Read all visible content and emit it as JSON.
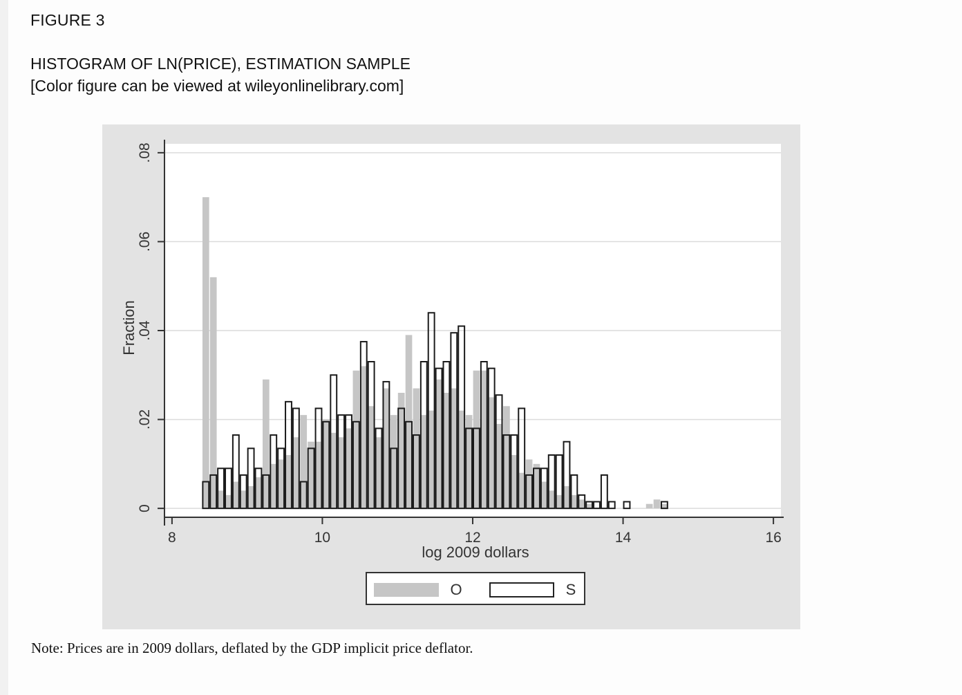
{
  "page": {
    "figure_label": "FIGURE 3",
    "title": "HISTOGRAM OF LN(PRICE), ESTIMATION SAMPLE",
    "subtitle": "[Color figure can be viewed at wileyonlinelibrary.com]",
    "note": "Note: Prices are in 2009 dollars, deflated by the GDP implicit price deflator."
  },
  "colors": {
    "panel_bg": "#e3e3e3",
    "plot_bg": "#ffffff",
    "series_o_fill": "#c6c6c6",
    "series_s_stroke": "#1a1a1a",
    "grid": "#dcdcdc"
  },
  "chart_data": {
    "type": "bar",
    "xlabel": "log 2009 dollars",
    "ylabel": "Fraction",
    "xlim": [
      7.9,
      16.1
    ],
    "ylim": [
      -0.002,
      0.082
    ],
    "x_ticks": [
      8,
      10,
      12,
      14,
      16
    ],
    "x_tick_labels": [
      "8",
      "10",
      "12",
      "14",
      "16"
    ],
    "y_ticks": [
      0,
      0.02,
      0.04,
      0.06,
      0.08
    ],
    "y_tick_labels": [
      "0",
      ".02",
      ".04",
      ".06",
      ".08"
    ],
    "grid": true,
    "legend_position": "bottom",
    "bin_width": 0.1,
    "series": [
      {
        "name": "O",
        "style": "filled gray",
        "x": [
          8.45,
          8.55,
          8.65,
          8.75,
          8.85,
          8.95,
          9.05,
          9.15,
          9.25,
          9.35,
          9.45,
          9.55,
          9.65,
          9.75,
          9.85,
          9.95,
          10.05,
          10.15,
          10.25,
          10.35,
          10.45,
          10.55,
          10.65,
          10.75,
          10.85,
          10.95,
          11.05,
          11.15,
          11.25,
          11.35,
          11.45,
          11.55,
          11.65,
          11.75,
          11.85,
          11.95,
          12.05,
          12.15,
          12.25,
          12.35,
          12.45,
          12.55,
          12.65,
          12.75,
          12.85,
          12.95,
          13.05,
          13.15,
          13.25,
          13.35,
          13.45,
          13.55,
          13.65,
          13.75,
          13.85,
          13.95,
          14.05,
          14.15,
          14.25,
          14.35,
          14.45,
          14.55
        ],
        "values": [
          0.07,
          0.052,
          0.004,
          0.003,
          0.006,
          0.004,
          0.005,
          0.007,
          0.029,
          0.01,
          0.011,
          0.012,
          0.016,
          0.021,
          0.015,
          0.015,
          0.02,
          0.017,
          0.016,
          0.018,
          0.031,
          0.032,
          0.023,
          0.016,
          0.027,
          0.021,
          0.026,
          0.039,
          0.027,
          0.021,
          0.022,
          0.029,
          0.026,
          0.027,
          0.022,
          0.021,
          0.031,
          0.031,
          0.025,
          0.019,
          0.023,
          0.012,
          0.008,
          0.011,
          0.01,
          0.006,
          0.004,
          0.003,
          0.005,
          0.003,
          0.002,
          0.001,
          0.0,
          0.0,
          0.0,
          0.0,
          0.0,
          0.0,
          0.0,
          0.001,
          0.002,
          0.001
        ]
      },
      {
        "name": "S",
        "style": "hollow outline",
        "x": [
          8.45,
          8.55,
          8.65,
          8.75,
          8.85,
          8.95,
          9.05,
          9.15,
          9.25,
          9.35,
          9.45,
          9.55,
          9.65,
          9.75,
          9.85,
          9.95,
          10.05,
          10.15,
          10.25,
          10.35,
          10.45,
          10.55,
          10.65,
          10.75,
          10.85,
          10.95,
          11.05,
          11.15,
          11.25,
          11.35,
          11.45,
          11.55,
          11.65,
          11.75,
          11.85,
          11.95,
          12.05,
          12.15,
          12.25,
          12.35,
          12.45,
          12.55,
          12.65,
          12.75,
          12.85,
          12.95,
          13.05,
          13.15,
          13.25,
          13.35,
          13.45,
          13.55,
          13.65,
          13.75,
          13.85,
          13.95,
          14.05,
          14.15,
          14.25,
          14.35,
          14.45,
          14.55
        ],
        "values": [
          0.006,
          0.0075,
          0.009,
          0.009,
          0.0165,
          0.0075,
          0.0135,
          0.009,
          0.0075,
          0.0165,
          0.0135,
          0.024,
          0.0225,
          0.006,
          0.0135,
          0.0225,
          0.0195,
          0.03,
          0.021,
          0.021,
          0.0195,
          0.0375,
          0.033,
          0.018,
          0.0285,
          0.0135,
          0.0225,
          0.0195,
          0.0165,
          0.033,
          0.044,
          0.0315,
          0.033,
          0.0395,
          0.041,
          0.018,
          0.018,
          0.033,
          0.0315,
          0.0255,
          0.0165,
          0.0165,
          0.0225,
          0.0075,
          0.009,
          0.009,
          0.012,
          0.012,
          0.015,
          0.0075,
          0.003,
          0.0015,
          0.0015,
          0.0075,
          0.0015,
          0.0,
          0.0015,
          0.0,
          0.0,
          0.0,
          0.0,
          0.0015
        ]
      }
    ]
  }
}
